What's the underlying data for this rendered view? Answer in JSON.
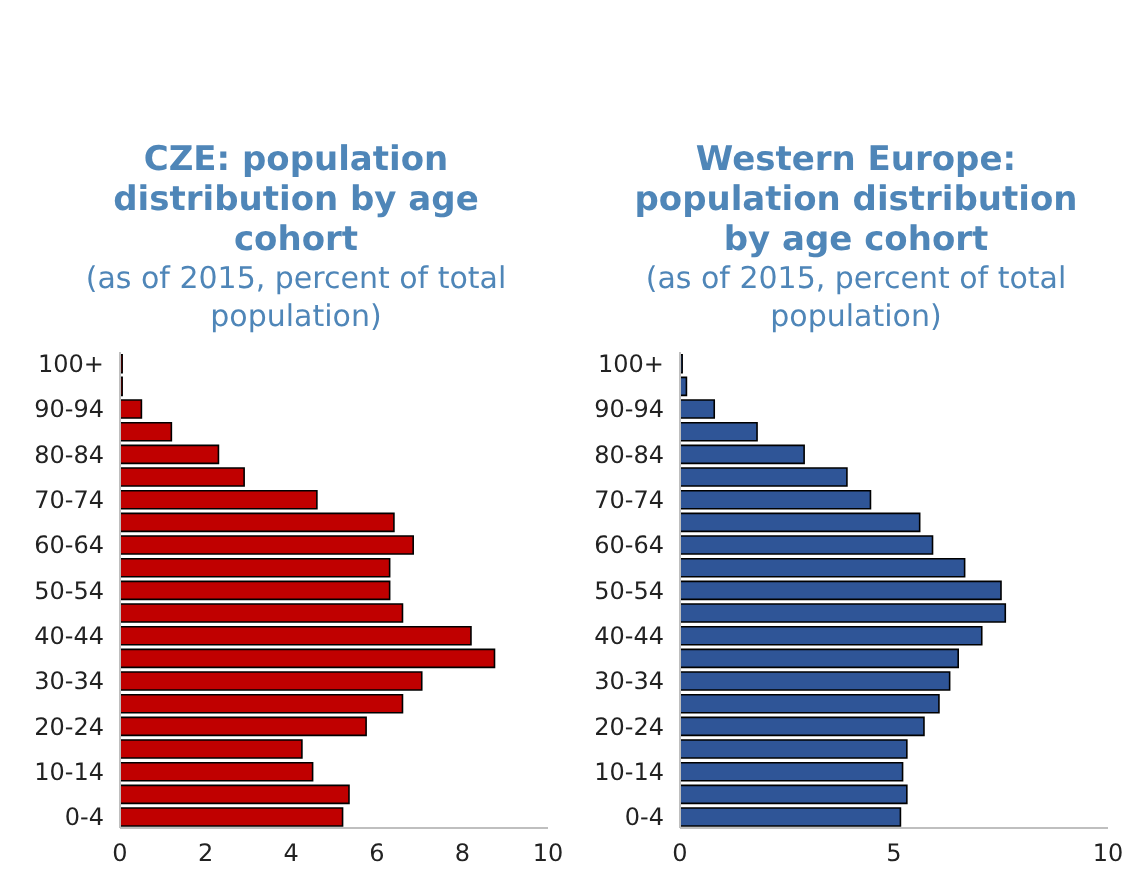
{
  "chart_data": [
    {
      "type": "bar",
      "orientation": "horizontal",
      "title": "CZE: population distribution by age cohort",
      "subtitle": "(as of 2015, percent of total population)",
      "categories": [
        "100+",
        null,
        "90-94",
        null,
        "80-84",
        null,
        "70-74",
        null,
        "60-64",
        null,
        "50-54",
        null,
        "40-44",
        null,
        "30-34",
        null,
        "20-24",
        null,
        "10-14",
        null,
        "0-4"
      ],
      "values": [
        0.05,
        0.05,
        0.5,
        1.2,
        2.3,
        2.9,
        4.6,
        6.4,
        6.85,
        6.3,
        6.3,
        6.6,
        8.2,
        8.75,
        7.05,
        6.6,
        5.75,
        4.25,
        4.5,
        5.35,
        5.2
      ],
      "color": "#c00000",
      "xlim": [
        0,
        10
      ],
      "xticks": [
        0,
        2,
        4,
        6,
        8,
        10
      ]
    },
    {
      "type": "bar",
      "orientation": "horizontal",
      "title": "Western Europe: population distribution by age cohort",
      "subtitle": "(as of 2015, percent of total population)",
      "categories": [
        "100+",
        null,
        "90-94",
        null,
        "80-84",
        null,
        "70-74",
        null,
        "60-64",
        null,
        "50-54",
        null,
        "40-44",
        null,
        "30-34",
        null,
        "20-24",
        null,
        "10-14",
        null,
        "0-4"
      ],
      "values": [
        0.05,
        0.15,
        0.8,
        1.8,
        2.9,
        3.9,
        4.45,
        5.6,
        5.9,
        6.65,
        7.5,
        7.6,
        7.05,
        6.5,
        6.3,
        6.05,
        5.7,
        5.3,
        5.2,
        5.3,
        5.15
      ],
      "color": "#2f5597",
      "xlim": [
        0,
        10
      ],
      "xticks": [
        0,
        5,
        10
      ]
    }
  ]
}
